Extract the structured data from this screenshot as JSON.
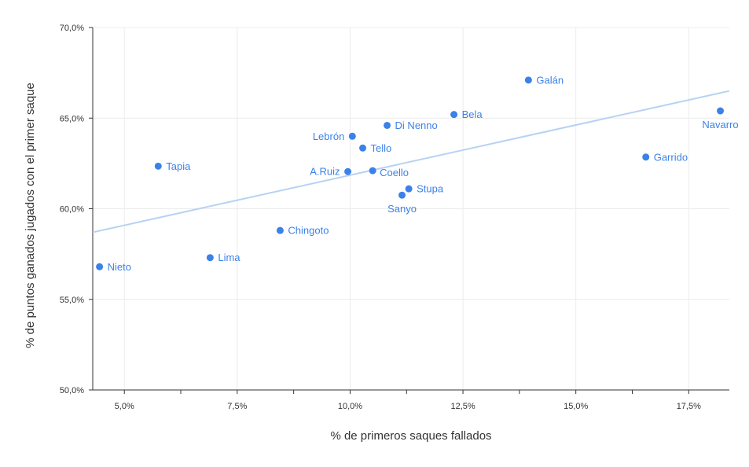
{
  "chart_data": {
    "type": "scatter",
    "title": "",
    "xlabel": "% de primeros saques fallados",
    "ylabel": "% de puntos ganados jugados con el primer saque",
    "xlim": [
      4.3,
      18.4
    ],
    "ylim": [
      50,
      70
    ],
    "x_ticks": [
      5.0,
      7.5,
      10.0,
      12.5,
      15.0,
      17.5
    ],
    "x_tick_labels": [
      "5,0%",
      "7,5%",
      "10,0%",
      "12,5%",
      "15,0%",
      "17,5%"
    ],
    "x_minor_ticks": [
      6.25,
      8.75,
      11.25,
      13.75,
      16.25
    ],
    "y_ticks": [
      50,
      55,
      60,
      65,
      70
    ],
    "y_tick_labels": [
      "50,0%",
      "55,0%",
      "60,0%",
      "65,0%",
      "70,0%"
    ],
    "grid": true,
    "point_color": "#3b82e8",
    "trendline_color": "#b7d2f2",
    "trendline": [
      [
        4.3,
        58.7
      ],
      [
        18.4,
        66.5
      ]
    ],
    "series": [
      {
        "points": [
          {
            "label": "Nieto",
            "x": 4.45,
            "y": 56.8,
            "label_pos": "right"
          },
          {
            "label": "Tapia",
            "x": 5.75,
            "y": 62.35,
            "label_pos": "right"
          },
          {
            "label": "Lima",
            "x": 6.9,
            "y": 57.3,
            "label_pos": "right"
          },
          {
            "label": "Chingoto",
            "x": 8.45,
            "y": 58.8,
            "label_pos": "right"
          },
          {
            "label": "A.Ruiz",
            "x": 9.95,
            "y": 62.05,
            "label_pos": "left"
          },
          {
            "label": "Lebrón",
            "x": 10.05,
            "y": 64.0,
            "label_pos": "left"
          },
          {
            "label": "Tello",
            "x": 10.28,
            "y": 63.35,
            "label_pos": "right"
          },
          {
            "label": "Coello",
            "x": 10.5,
            "y": 62.1,
            "label_pos": "right-below"
          },
          {
            "label": "Di Nenno",
            "x": 10.82,
            "y": 64.6,
            "label_pos": "right"
          },
          {
            "label": "Sanyo",
            "x": 11.15,
            "y": 60.75,
            "label_pos": "below"
          },
          {
            "label": "Stupa",
            "x": 11.3,
            "y": 61.1,
            "label_pos": "right"
          },
          {
            "label": "Bela",
            "x": 12.3,
            "y": 65.2,
            "label_pos": "right"
          },
          {
            "label": "Galán",
            "x": 13.95,
            "y": 67.1,
            "label_pos": "right"
          },
          {
            "label": "Garrido",
            "x": 16.55,
            "y": 62.85,
            "label_pos": "right"
          },
          {
            "label": "Navarro",
            "x": 18.2,
            "y": 65.4,
            "label_pos": "below"
          }
        ]
      }
    ]
  }
}
